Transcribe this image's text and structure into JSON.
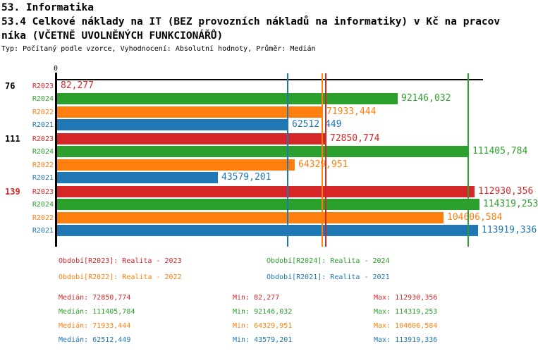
{
  "header": {
    "title": "53. Informatika",
    "subtitle_line1": "53.4 Celkové náklady na IT (BEZ provozních nákladů na informatiky) v Kč na pracov",
    "subtitle_line2": "níka (VČETNĚ UVOLNĚNÝCH FUNKCIONÁŘŮ)",
    "meta": "Typ: Počítaný podle vzorce, Vyhodnocení: Absolutní hodnoty, Průměr: Medián"
  },
  "colors": {
    "R2023": "#d62728",
    "R2024": "#2ca02c",
    "R2022": "#ff7f0e",
    "R2021": "#1f77b4",
    "axis": "#000000",
    "group_label_default": "#000000",
    "group_label_highlight": "#d62728"
  },
  "chart_data": {
    "type": "bar",
    "orientation": "horizontal",
    "title": "53.4 Celkové náklady na IT (BEZ provozních nákladů na informatiky) v Kč na pracovníka (VČETNĚ UVOLNĚNÝCH FUNKCIONÁŘŮ)",
    "xlim": [
      0,
      115420
    ],
    "grid": false,
    "axis_zero_label": "0",
    "series_order": [
      "R2023",
      "R2024",
      "R2022",
      "R2021"
    ],
    "groups": [
      {
        "label": "76",
        "highlighted": false,
        "bars": [
          {
            "series": "R2023",
            "value": 82.277,
            "value_label": "82,277"
          },
          {
            "series": "R2024",
            "value": 92146.032,
            "value_label": "92146,032"
          },
          {
            "series": "R2022",
            "value": 71933.444,
            "value_label": "71933,444"
          },
          {
            "series": "R2021",
            "value": 62512.449,
            "value_label": "62512,449"
          }
        ]
      },
      {
        "label": "111",
        "highlighted": false,
        "bars": [
          {
            "series": "R2023",
            "value": 72850.774,
            "value_label": "72850,774"
          },
          {
            "series": "R2024",
            "value": 111405.784,
            "value_label": "111405,784"
          },
          {
            "series": "R2022",
            "value": 64329.951,
            "value_label": "64329,951"
          },
          {
            "series": "R2021",
            "value": 43579.201,
            "value_label": "43579,201"
          }
        ]
      },
      {
        "label": "139",
        "highlighted": true,
        "bars": [
          {
            "series": "R2023",
            "value": 112930.356,
            "value_label": "112930,356"
          },
          {
            "series": "R2024",
            "value": 114319.253,
            "value_label": "114319,253"
          },
          {
            "series": "R2022",
            "value": 104606.584,
            "value_label": "104606,584"
          },
          {
            "series": "R2021",
            "value": 113919.336,
            "value_label": "113919,336"
          }
        ]
      }
    ],
    "median_lines": [
      {
        "series": "R2023",
        "value": 72850.774
      },
      {
        "series": "R2024",
        "value": 111405.784
      },
      {
        "series": "R2022",
        "value": 71933.444
      },
      {
        "series": "R2021",
        "value": 62512.449
      }
    ]
  },
  "legend": {
    "rows": [
      [
        {
          "series": "R2023",
          "label": "Období[R2023]: Realita - 2023"
        },
        {
          "series": "R2024",
          "label": "Období[R2024]: Realita - 2024"
        }
      ],
      [
        {
          "series": "R2022",
          "label": "Období[R2022]: Realita - 2022"
        },
        {
          "series": "R2021",
          "label": "Období[R2021]: Realita - 2021"
        }
      ]
    ]
  },
  "stats": {
    "labels": {
      "median": "Medián",
      "min": "Min",
      "max": "Max"
    },
    "rows": [
      {
        "series": "R2023",
        "median": "72850,774",
        "min": "82,277",
        "max": "112930,356"
      },
      {
        "series": "R2024",
        "median": "111405,784",
        "min": "92146,032",
        "max": "114319,253"
      },
      {
        "series": "R2022",
        "median": "71933,444",
        "min": "64329,951",
        "max": "104606,584"
      },
      {
        "series": "R2021",
        "median": "62512,449",
        "min": "43579,201",
        "max": "113919,336"
      }
    ]
  }
}
